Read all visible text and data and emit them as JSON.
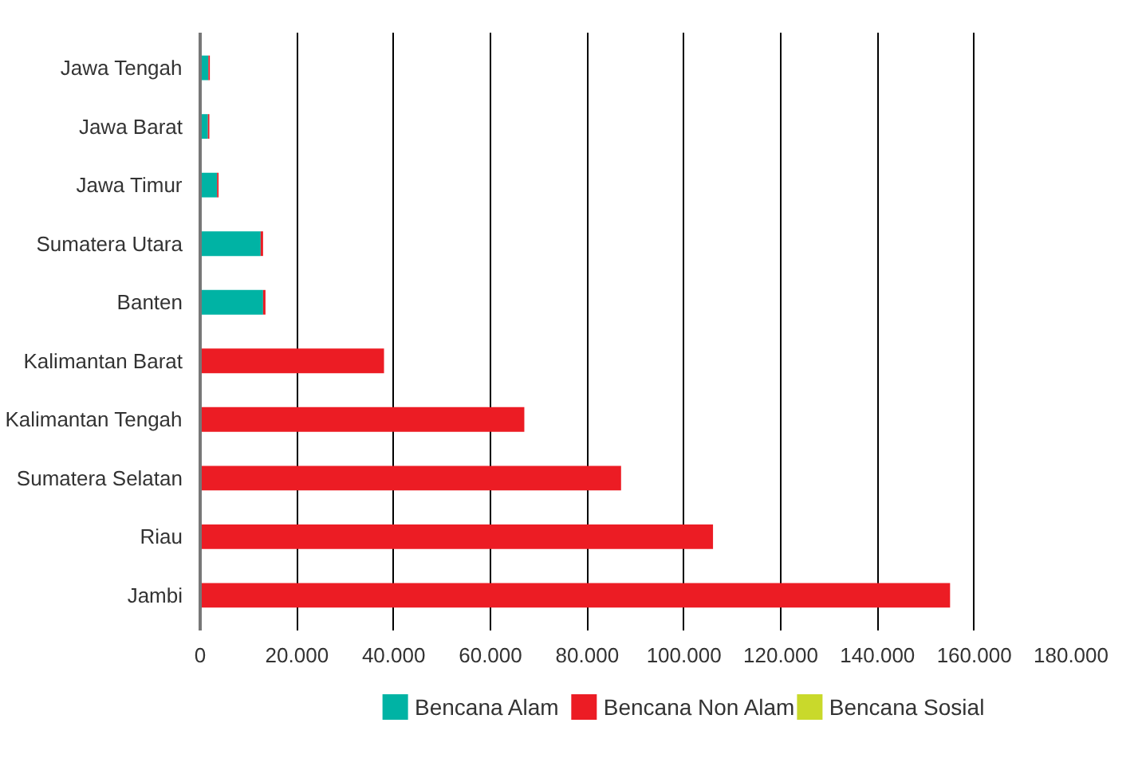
{
  "chart_data": {
    "type": "bar",
    "orientation": "horizontal",
    "stacked": true,
    "categories": [
      "Jawa Tengah",
      "Jawa Barat",
      "Jawa Timur",
      "Sumatera Utara",
      "Banten",
      "Kalimantan Barat",
      "Kalimantan Tengah",
      "Sumatera Selatan",
      "Riau",
      "Jambi"
    ],
    "series": [
      {
        "name": "Bencana Alam",
        "color": "#00b3a4",
        "values": [
          1700,
          1600,
          3500,
          12500,
          13000,
          0,
          0,
          0,
          0,
          0
        ]
      },
      {
        "name": "Bencana Non Alam",
        "color": "#ec1c24",
        "values": [
          300,
          300,
          300,
          500,
          500,
          38000,
          67000,
          87000,
          106000,
          155000
        ]
      },
      {
        "name": "Bencana Sosial",
        "color": "#c9d92b",
        "values": [
          0,
          0,
          0,
          0,
          0,
          0,
          0,
          0,
          0,
          0
        ]
      }
    ],
    "xlim": [
      0,
      180000
    ],
    "xticks": [
      0,
      {
        "value": 20000,
        "label": "20.000"
      },
      {
        "value": 40000,
        "label": "40.000"
      },
      {
        "value": 60000,
        "label": "60.000"
      },
      {
        "value": 80000,
        "label": "80.000"
      },
      {
        "value": 100000,
        "label": "100.000"
      },
      {
        "value": 120000,
        "label": "120.000"
      },
      {
        "value": 140000,
        "label": "140.000"
      },
      {
        "value": 160000,
        "label": "160.000"
      },
      {
        "value": 180000,
        "label": "180.000"
      }
    ],
    "grid": "x",
    "legend": "bottom"
  }
}
